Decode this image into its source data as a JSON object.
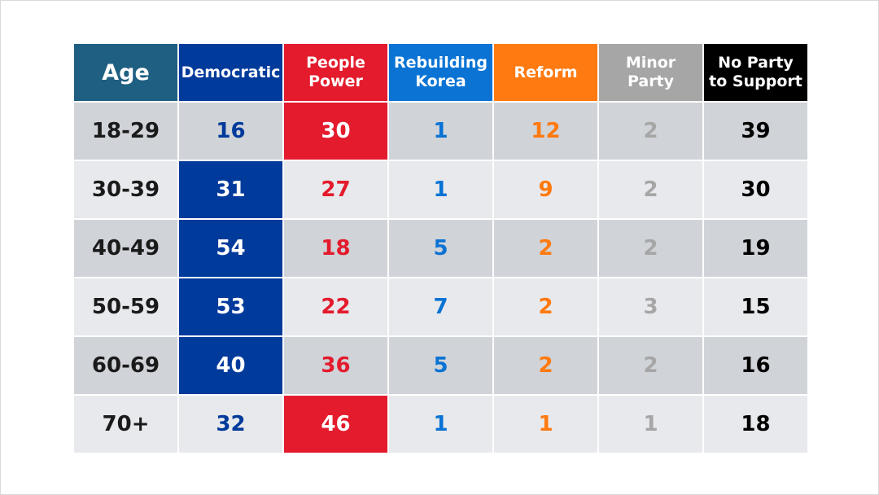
{
  "chart_data": {
    "type": "table",
    "columns": [
      {
        "key": "age",
        "label": "Age",
        "header_bg": "#1f5f82",
        "text_color": "#1a1a1a"
      },
      {
        "key": "democratic",
        "label": "Democratic",
        "header_bg": "#003a9b",
        "text_color": "#003a9b",
        "highlight_bg": "#003a9b"
      },
      {
        "key": "people_power",
        "label": "People\nPower",
        "header_bg": "#e31b2d",
        "text_color": "#e31b2d",
        "highlight_bg": "#e31b2d"
      },
      {
        "key": "rebuilding_korea",
        "label": "Rebuilding\nKorea",
        "header_bg": "#0a73d4",
        "text_color": "#0a73d4"
      },
      {
        "key": "reform",
        "label": "Reform",
        "header_bg": "#ff7a10",
        "text_color": "#ff7a10"
      },
      {
        "key": "minor_party",
        "label": "Minor\nParty",
        "header_bg": "#a6a6a6",
        "text_color": "#a6a6a6"
      },
      {
        "key": "no_party",
        "label": "No Party\nto Support",
        "header_bg": "#000000",
        "text_color": "#000000"
      }
    ],
    "rows": [
      {
        "age": "18-29",
        "values": [
          16,
          30,
          1,
          12,
          2,
          39
        ],
        "leader": "people_power"
      },
      {
        "age": "30-39",
        "values": [
          31,
          27,
          1,
          9,
          2,
          30
        ],
        "leader": "democratic"
      },
      {
        "age": "40-49",
        "values": [
          54,
          18,
          5,
          2,
          2,
          19
        ],
        "leader": "democratic"
      },
      {
        "age": "50-59",
        "values": [
          53,
          22,
          7,
          2,
          3,
          15
        ],
        "leader": "democratic"
      },
      {
        "age": "60-69",
        "values": [
          40,
          36,
          5,
          2,
          2,
          16
        ],
        "leader": "democratic"
      },
      {
        "age": "70+",
        "values": [
          32,
          46,
          1,
          1,
          1,
          18
        ],
        "leader": "people_power"
      }
    ],
    "row_colors": {
      "odd": "#d0d3d8",
      "even": "#e8e9ec"
    },
    "highlight_text_color": "#ffffff"
  }
}
